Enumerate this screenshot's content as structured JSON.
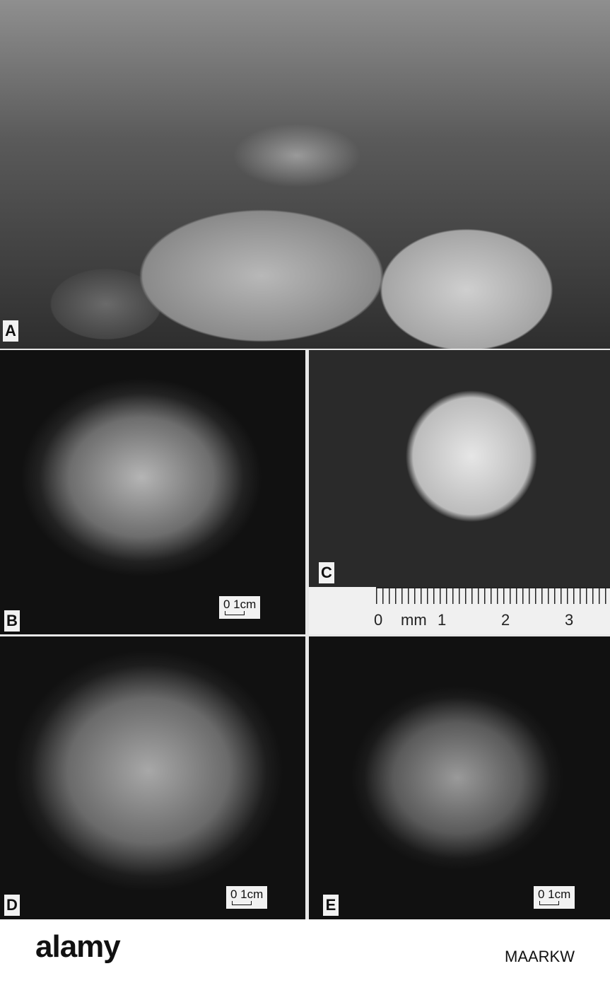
{
  "plate": {
    "panels": [
      {
        "label": "A"
      },
      {
        "label": "B",
        "scale_label": "0 1cm"
      },
      {
        "label": "C"
      },
      {
        "label": "D",
        "scale_label": "0 1cm"
      },
      {
        "label": "E",
        "scale_label": "0 1cm"
      }
    ],
    "ruler": {
      "labels": [
        "0",
        "mm",
        "1",
        "2",
        "3"
      ]
    }
  },
  "footer": {
    "logo": "alamy",
    "code": "MAARKW"
  }
}
